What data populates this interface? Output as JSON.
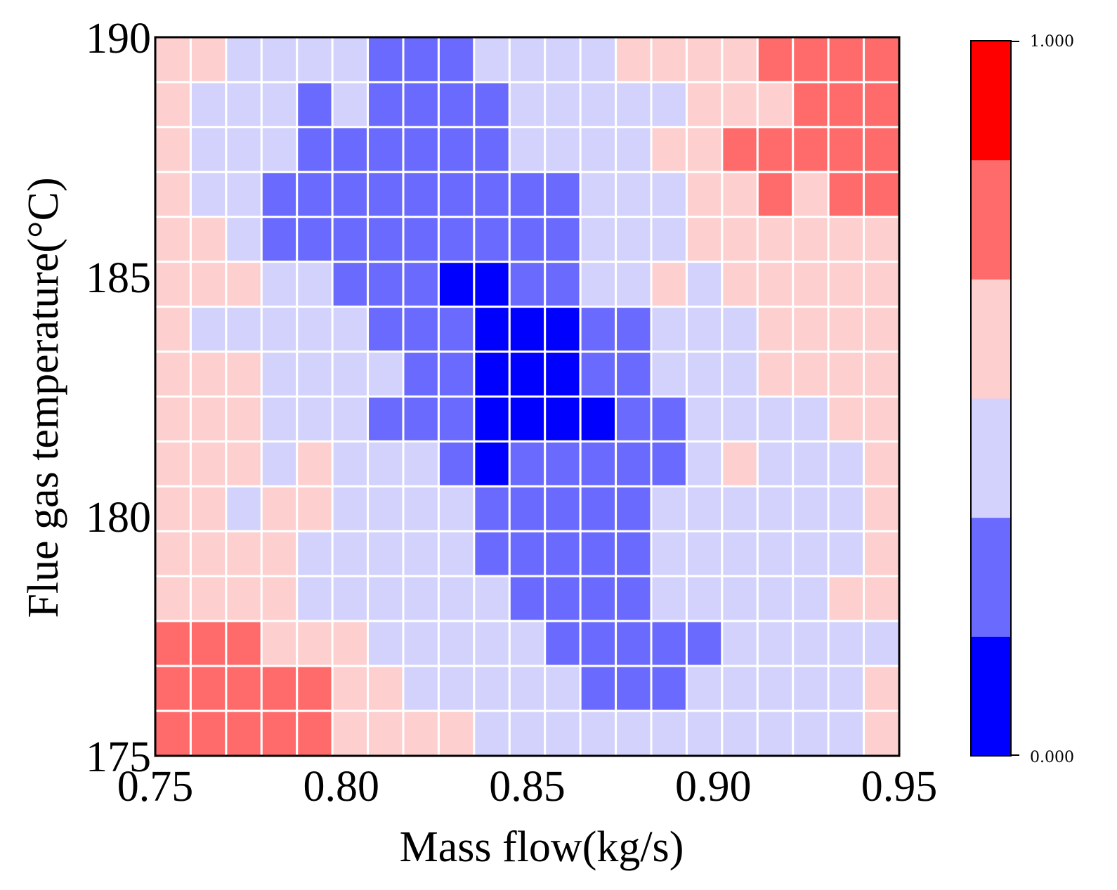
{
  "chart_data": {
    "type": "heatmap",
    "title": "",
    "xlabel": "Mass flow(kg/s)",
    "ylabel": "Flue gas temperature(°C)",
    "xlim": [
      0.75,
      0.95
    ],
    "ylim": [
      175,
      190
    ],
    "x_ticks": [
      {
        "value": 0.75,
        "label": "0.75"
      },
      {
        "value": 0.8,
        "label": "0.80"
      },
      {
        "value": 0.85,
        "label": "0.85"
      },
      {
        "value": 0.9,
        "label": "0.90"
      },
      {
        "value": 0.95,
        "label": "0.95"
      }
    ],
    "y_ticks": [
      {
        "value": 175,
        "label": "175"
      },
      {
        "value": 180,
        "label": "180"
      },
      {
        "value": 185,
        "label": "185"
      },
      {
        "value": 190,
        "label": "190"
      }
    ],
    "colorbar": {
      "min": 0.0,
      "max": 1.0,
      "min_label": "0.000",
      "max_label": "1.000",
      "levels": [
        "#0000ff",
        "#6a6aff",
        "#d2d2fc",
        "#fdcfcf",
        "#ff6b6b",
        "#ff0000"
      ]
    },
    "note": "z values are the level index 0-5 (0 = darkest blue, 5 = red); rows listed from top (190°C) to bottom (175°C), columns from 0.75 to 0.95 kg/s",
    "rows_top_to_bottom": [
      [
        3,
        3,
        2,
        2,
        2,
        2,
        1,
        1,
        1,
        2,
        2,
        2,
        2,
        3,
        3,
        3,
        3,
        4,
        4,
        4,
        4
      ],
      [
        3,
        2,
        2,
        2,
        1,
        2,
        1,
        1,
        1,
        1,
        2,
        2,
        2,
        2,
        2,
        3,
        3,
        3,
        4,
        4,
        4
      ],
      [
        3,
        2,
        2,
        2,
        1,
        1,
        1,
        1,
        1,
        1,
        2,
        2,
        2,
        2,
        3,
        3,
        4,
        4,
        4,
        4,
        4
      ],
      [
        3,
        2,
        2,
        1,
        1,
        1,
        1,
        1,
        1,
        1,
        1,
        1,
        2,
        2,
        2,
        3,
        3,
        4,
        3,
        4,
        4
      ],
      [
        3,
        3,
        2,
        1,
        1,
        1,
        1,
        1,
        1,
        1,
        1,
        1,
        2,
        2,
        2,
        3,
        3,
        3,
        3,
        3,
        3
      ],
      [
        3,
        3,
        3,
        2,
        2,
        1,
        1,
        1,
        0,
        0,
        1,
        1,
        2,
        2,
        3,
        2,
        3,
        3,
        3,
        3,
        3
      ],
      [
        3,
        2,
        2,
        2,
        2,
        2,
        1,
        1,
        1,
        0,
        0,
        0,
        1,
        1,
        2,
        2,
        2,
        3,
        3,
        3,
        3
      ],
      [
        3,
        3,
        3,
        2,
        2,
        2,
        2,
        1,
        1,
        0,
        0,
        0,
        1,
        1,
        2,
        2,
        2,
        3,
        3,
        3,
        3
      ],
      [
        3,
        3,
        3,
        2,
        2,
        2,
        1,
        1,
        1,
        0,
        0,
        0,
        0,
        1,
        1,
        2,
        2,
        2,
        2,
        3,
        3
      ],
      [
        3,
        3,
        3,
        2,
        3,
        2,
        2,
        2,
        1,
        0,
        1,
        1,
        1,
        1,
        1,
        2,
        3,
        2,
        2,
        2,
        3
      ],
      [
        3,
        3,
        2,
        3,
        3,
        2,
        2,
        2,
        2,
        1,
        1,
        1,
        1,
        1,
        2,
        2,
        2,
        2,
        2,
        2,
        3
      ],
      [
        3,
        3,
        3,
        3,
        2,
        2,
        2,
        2,
        2,
        1,
        1,
        1,
        1,
        1,
        2,
        2,
        2,
        2,
        2,
        2,
        3
      ],
      [
        3,
        3,
        3,
        3,
        2,
        2,
        2,
        2,
        2,
        2,
        1,
        1,
        1,
        1,
        2,
        2,
        2,
        2,
        2,
        3,
        3
      ],
      [
        4,
        4,
        4,
        3,
        3,
        3,
        2,
        2,
        2,
        2,
        2,
        1,
        1,
        1,
        1,
        1,
        2,
        2,
        2,
        2,
        2
      ],
      [
        4,
        4,
        4,
        4,
        4,
        3,
        3,
        2,
        2,
        2,
        2,
        2,
        1,
        1,
        1,
        2,
        2,
        2,
        2,
        2,
        3
      ],
      [
        4,
        4,
        4,
        4,
        4,
        3,
        3,
        3,
        3,
        2,
        2,
        2,
        2,
        2,
        2,
        2,
        2,
        2,
        2,
        2,
        3
      ]
    ]
  }
}
